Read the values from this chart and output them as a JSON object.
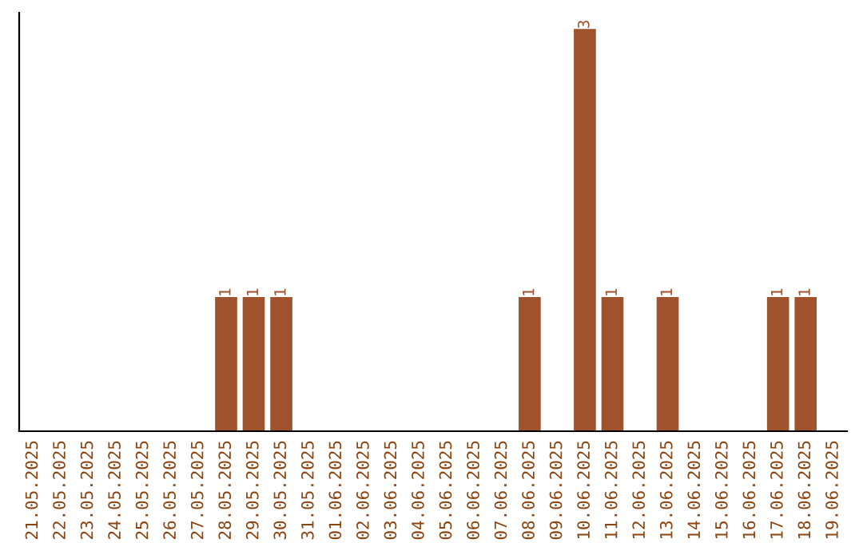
{
  "chart_data": {
    "type": "bar",
    "categories": [
      "21.05.2025",
      "22.05.2025",
      "23.05.2025",
      "24.05.2025",
      "25.05.2025",
      "26.05.2025",
      "27.05.2025",
      "28.05.2025",
      "29.05.2025",
      "30.05.2025",
      "31.05.2025",
      "01.06.2025",
      "02.06.2025",
      "03.06.2025",
      "04.06.2025",
      "05.06.2025",
      "06.06.2025",
      "07.06.2025",
      "08.06.2025",
      "09.06.2025",
      "10.06.2025",
      "11.06.2025",
      "12.06.2025",
      "13.06.2025",
      "14.06.2025",
      "15.06.2025",
      "16.06.2025",
      "17.06.2025",
      "18.06.2025",
      "19.06.2025"
    ],
    "values": [
      0,
      0,
      0,
      0,
      0,
      0,
      0,
      1,
      1,
      1,
      0,
      0,
      0,
      0,
      0,
      0,
      0,
      0,
      1,
      0,
      3,
      1,
      0,
      1,
      0,
      0,
      0,
      1,
      1,
      0
    ],
    "value_labels": [
      null,
      null,
      null,
      null,
      null,
      null,
      null,
      "1",
      "1",
      "1",
      null,
      null,
      null,
      null,
      null,
      null,
      null,
      null,
      "1",
      null,
      "3",
      "1",
      null,
      "1",
      null,
      null,
      null,
      "1",
      "1",
      null
    ],
    "color": "#a0522d",
    "tick_labels": "x",
    "grid": false,
    "legend": false
  }
}
